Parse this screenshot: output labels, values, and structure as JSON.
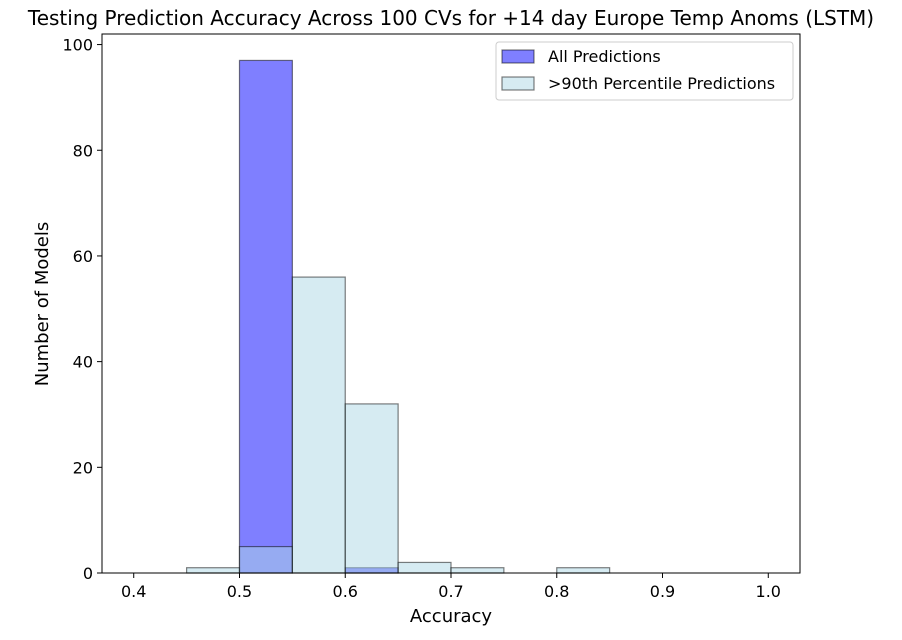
{
  "chart_data": {
    "type": "bar",
    "title": "Testing Prediction Accuracy Across 100 CVs for +14 day Europe Temp Anoms (LSTM)",
    "xlabel": "Accuracy",
    "ylabel": "Number of Models",
    "xlim": [
      0.37,
      1.03
    ],
    "ylim": [
      0,
      102
    ],
    "xticks": [
      "0.4",
      "0.5",
      "0.6",
      "0.7",
      "0.8",
      "0.9",
      "1.0"
    ],
    "yticks": [
      "0",
      "20",
      "40",
      "60",
      "80",
      "100"
    ],
    "bin_edges": [
      0.4,
      0.45,
      0.5,
      0.55,
      0.6,
      0.65,
      0.7,
      0.75,
      0.8,
      0.85,
      0.9,
      0.95,
      1.0
    ],
    "series": [
      {
        "name": "All Predictions",
        "values": [
          0,
          0,
          97,
          0,
          1,
          0,
          0,
          0,
          0,
          0,
          0,
          0
        ],
        "color": "#0000ff",
        "opacity": 0.5
      },
      {
        "name": ">90th Percentile Predictions",
        "values": [
          0,
          1,
          5,
          56,
          32,
          2,
          1,
          0,
          1,
          0,
          0,
          0
        ],
        "color": "#add8e6",
        "opacity": 0.5
      }
    ],
    "grid": false,
    "legend_position": "top-right"
  }
}
